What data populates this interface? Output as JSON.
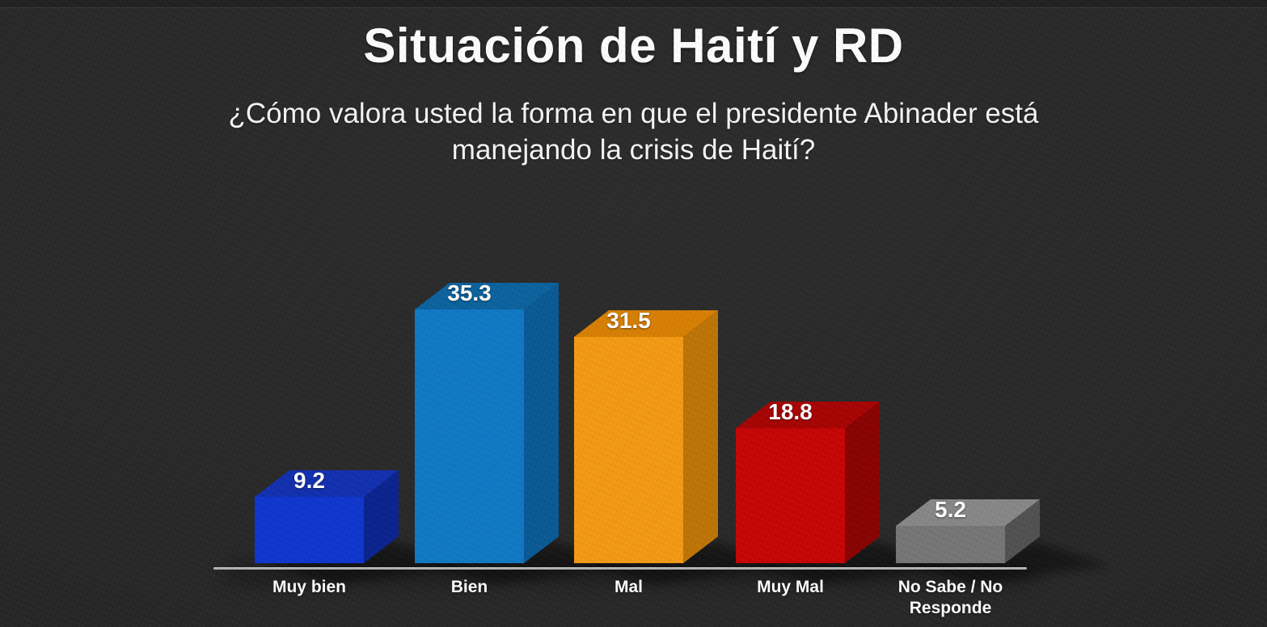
{
  "slide": {
    "title": "Situación de Haití y RD",
    "subtitle": "¿Cómo valora usted la forma en que el presidente Abinader está manejando la crisis de Haití?",
    "subtitle_lines": [
      "¿Cómo valora usted la forma en que el presidente Abinader está",
      "manejando la crisis de Haití?"
    ],
    "background_color": "#282828",
    "text_color": "#ffffff"
  },
  "chart_data": {
    "type": "bar",
    "style": "3d-box",
    "title": "Situación de Haití y RD",
    "subtitle": "¿Cómo valora usted la forma en que el presidente Abinader está manejando la crisis de Haití?",
    "categories": [
      "Muy bien",
      "Bien",
      "Mal",
      "Muy Mal",
      "No Sabe / No Responde"
    ],
    "values": [
      9.2,
      35.3,
      31.5,
      18.8,
      5.2
    ],
    "value_labels": [
      "9.2",
      "35.3",
      "31.5",
      "18.8",
      "5.2"
    ],
    "xlabel": "",
    "ylabel": "",
    "ylim": [
      0,
      40
    ],
    "grid": false,
    "legend": false,
    "value_label_color": "#ffffff",
    "category_label_color": "#ffffff",
    "baseline_color": "#bdbdbd",
    "series": [
      {
        "category": "Muy bien",
        "value": 9.2,
        "front": "#0e36cf",
        "top": "#1130b0",
        "side": "#0a2390"
      },
      {
        "category": "Bien",
        "value": 35.3,
        "front": "#0e79c5",
        "top": "#0b639f",
        "side": "#095a96"
      },
      {
        "category": "Mal",
        "value": 31.5,
        "front": "#f59a14",
        "top": "#d98004",
        "side": "#bf7506"
      },
      {
        "category": "Muy Mal",
        "value": 18.8,
        "front": "#c70404",
        "top": "#a80303",
        "side": "#8a0202"
      },
      {
        "category": "No Sabe / No Responde",
        "value": 5.2,
        "front": "#767676",
        "top": "#888888",
        "side": "#515151"
      }
    ]
  }
}
